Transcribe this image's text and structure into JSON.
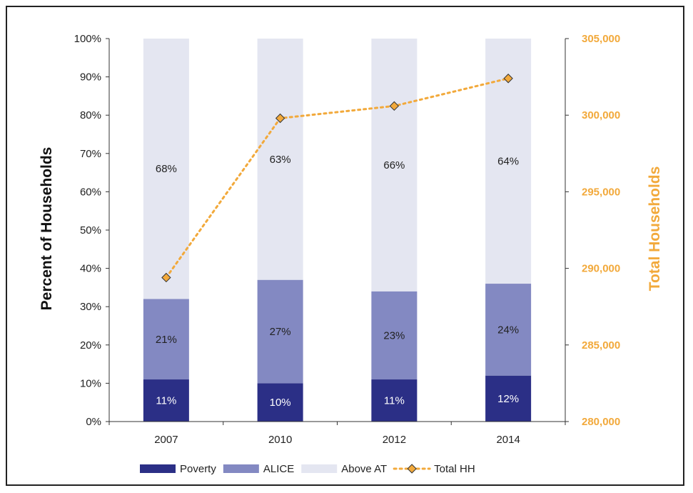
{
  "chart_data": {
    "type": "bar",
    "stacked": true,
    "categories": [
      "2007",
      "2010",
      "2012",
      "2014"
    ],
    "series": [
      {
        "name": "Poverty",
        "values": [
          11,
          10,
          11,
          12
        ],
        "labels": [
          "11%",
          "10%",
          "11%",
          "12%"
        ],
        "color": "#2B2F86",
        "label_color": "#ffffff"
      },
      {
        "name": "ALICE",
        "values": [
          21,
          27,
          23,
          24
        ],
        "labels": [
          "21%",
          "27%",
          "23%",
          "24%"
        ],
        "color": "#8389C2",
        "label_color": "#222222"
      },
      {
        "name": "Above AT",
        "values": [
          68,
          63,
          66,
          64
        ],
        "labels": [
          "68%",
          "63%",
          "66%",
          "64%"
        ],
        "color": "#E4E6F1",
        "label_color": "#222222"
      }
    ],
    "line_series": {
      "name": "Total HH",
      "values": [
        289400,
        299800,
        300600,
        302400
      ],
      "color": "#F2A93B",
      "marker": "diamond",
      "style": "dotted"
    },
    "ylabel": "Percent of Households",
    "y2label": "Total Households",
    "ylim": [
      0,
      100
    ],
    "y2lim": [
      280000,
      305000
    ],
    "yticks": [
      "0%",
      "10%",
      "20%",
      "30%",
      "40%",
      "50%",
      "60%",
      "70%",
      "80%",
      "90%",
      "100%"
    ],
    "y2ticks": [
      "280,000",
      "285,000",
      "290,000",
      "295,000",
      "300,000",
      "305,000"
    ],
    "grid": false,
    "legend_position": "bottom"
  }
}
